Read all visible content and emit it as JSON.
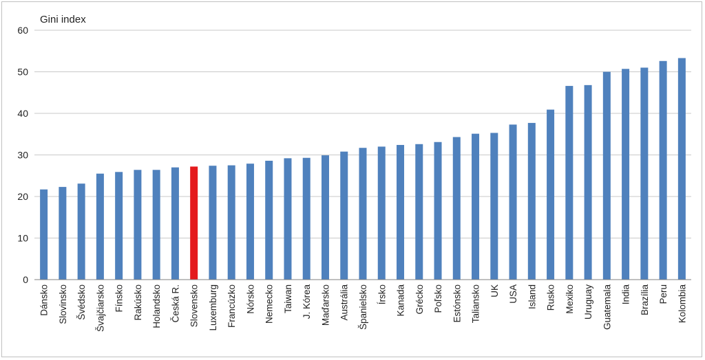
{
  "chart_data": {
    "type": "bar",
    "title": "",
    "ylabel": "Gini index",
    "xlabel": "",
    "ylim": [
      0,
      60
    ],
    "yticks": [
      0,
      10,
      20,
      30,
      40,
      50,
      60
    ],
    "grid": true,
    "legend": "none",
    "colors": {
      "default": "#4F81BD",
      "highlight": "#E41A1C"
    },
    "highlight": "Slovensko",
    "categories": [
      "Dánsko",
      "Slovinsko",
      "Švédsko",
      "Švajčiarsko",
      "Fínsko",
      "Rakúsko",
      "Holandsko",
      "Česká R.",
      "Slovensko",
      "Luxemburg",
      "Francúzko",
      "Nórsko",
      "Nemecko",
      "Taiwan",
      "J. Kórea",
      "Maďarsko",
      "Austrália",
      "Španielsko",
      "Írsko",
      "Kanada",
      "Grécko",
      "Poľsko",
      "Estónsko",
      "Taliansko",
      "UK",
      "USA",
      "Island",
      "Rusko",
      "Mexiko",
      "Uruguay",
      "Guatemala",
      "India",
      "Brazília",
      "Peru",
      "Kolombia"
    ],
    "values": [
      21.7,
      22.3,
      23.1,
      25.5,
      25.9,
      26.4,
      26.4,
      27.0,
      27.2,
      27.4,
      27.5,
      27.9,
      28.6,
      29.2,
      29.3,
      29.9,
      30.8,
      31.7,
      32.0,
      32.4,
      32.6,
      33.1,
      34.3,
      35.1,
      35.3,
      37.3,
      37.7,
      40.9,
      46.6,
      46.8,
      50.0,
      50.7,
      51.0,
      52.6,
      53.3
    ]
  }
}
